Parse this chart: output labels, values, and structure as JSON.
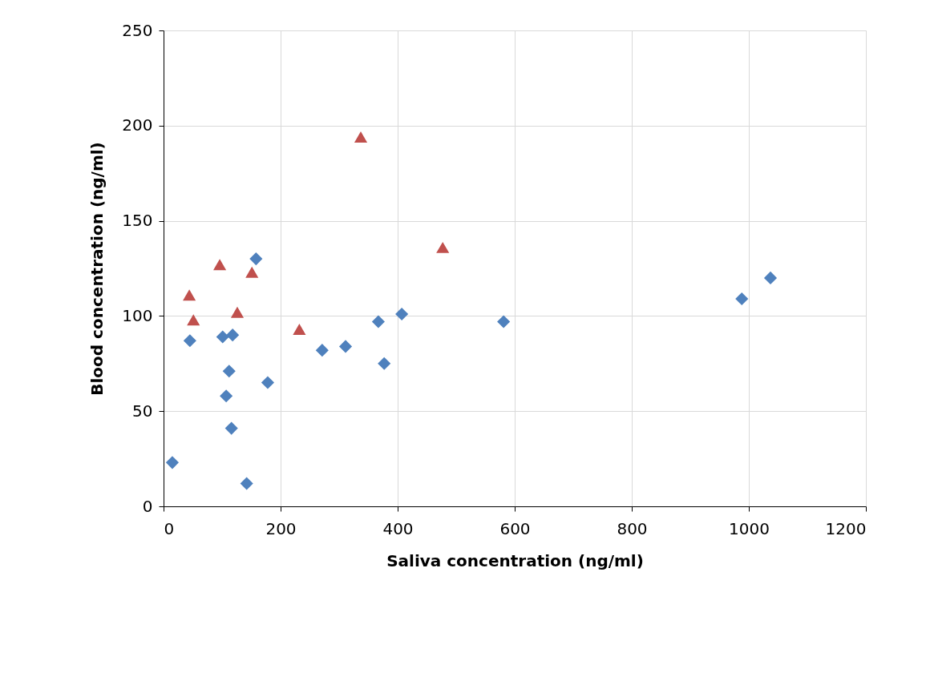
{
  "chart_data": {
    "type": "scatter",
    "xlabel": "Saliva concentration (ng/ml)",
    "ylabel": "Blood concentration (ng/ml)",
    "xlim": [
      0,
      1200
    ],
    "xticks": [
      0,
      200,
      400,
      600,
      800,
      1000,
      1200
    ],
    "ylim": [
      0,
      250
    ],
    "yticks": [
      0,
      50,
      100,
      150,
      200,
      250
    ],
    "grid": true,
    "series": [
      {
        "color": "#4f81bd",
        "marker": "diamond",
        "x": [
          15,
          45,
          101,
          118,
          112,
          107,
          116,
          142,
          158,
          178,
          271,
          311,
          367,
          377,
          407,
          581,
          988,
          1037
        ],
        "values": [
          23,
          87,
          89,
          90,
          71,
          58,
          41,
          12,
          130,
          65,
          82,
          84,
          97,
          75,
          101,
          97,
          109,
          120
        ]
      },
      {
        "color": "#c0504d",
        "marker": "triangle",
        "x": [
          44,
          51,
          96,
          151,
          126,
          232,
          337,
          477
        ],
        "values": [
          111,
          98,
          127,
          123,
          102,
          93,
          194,
          136
        ]
      }
    ]
  }
}
